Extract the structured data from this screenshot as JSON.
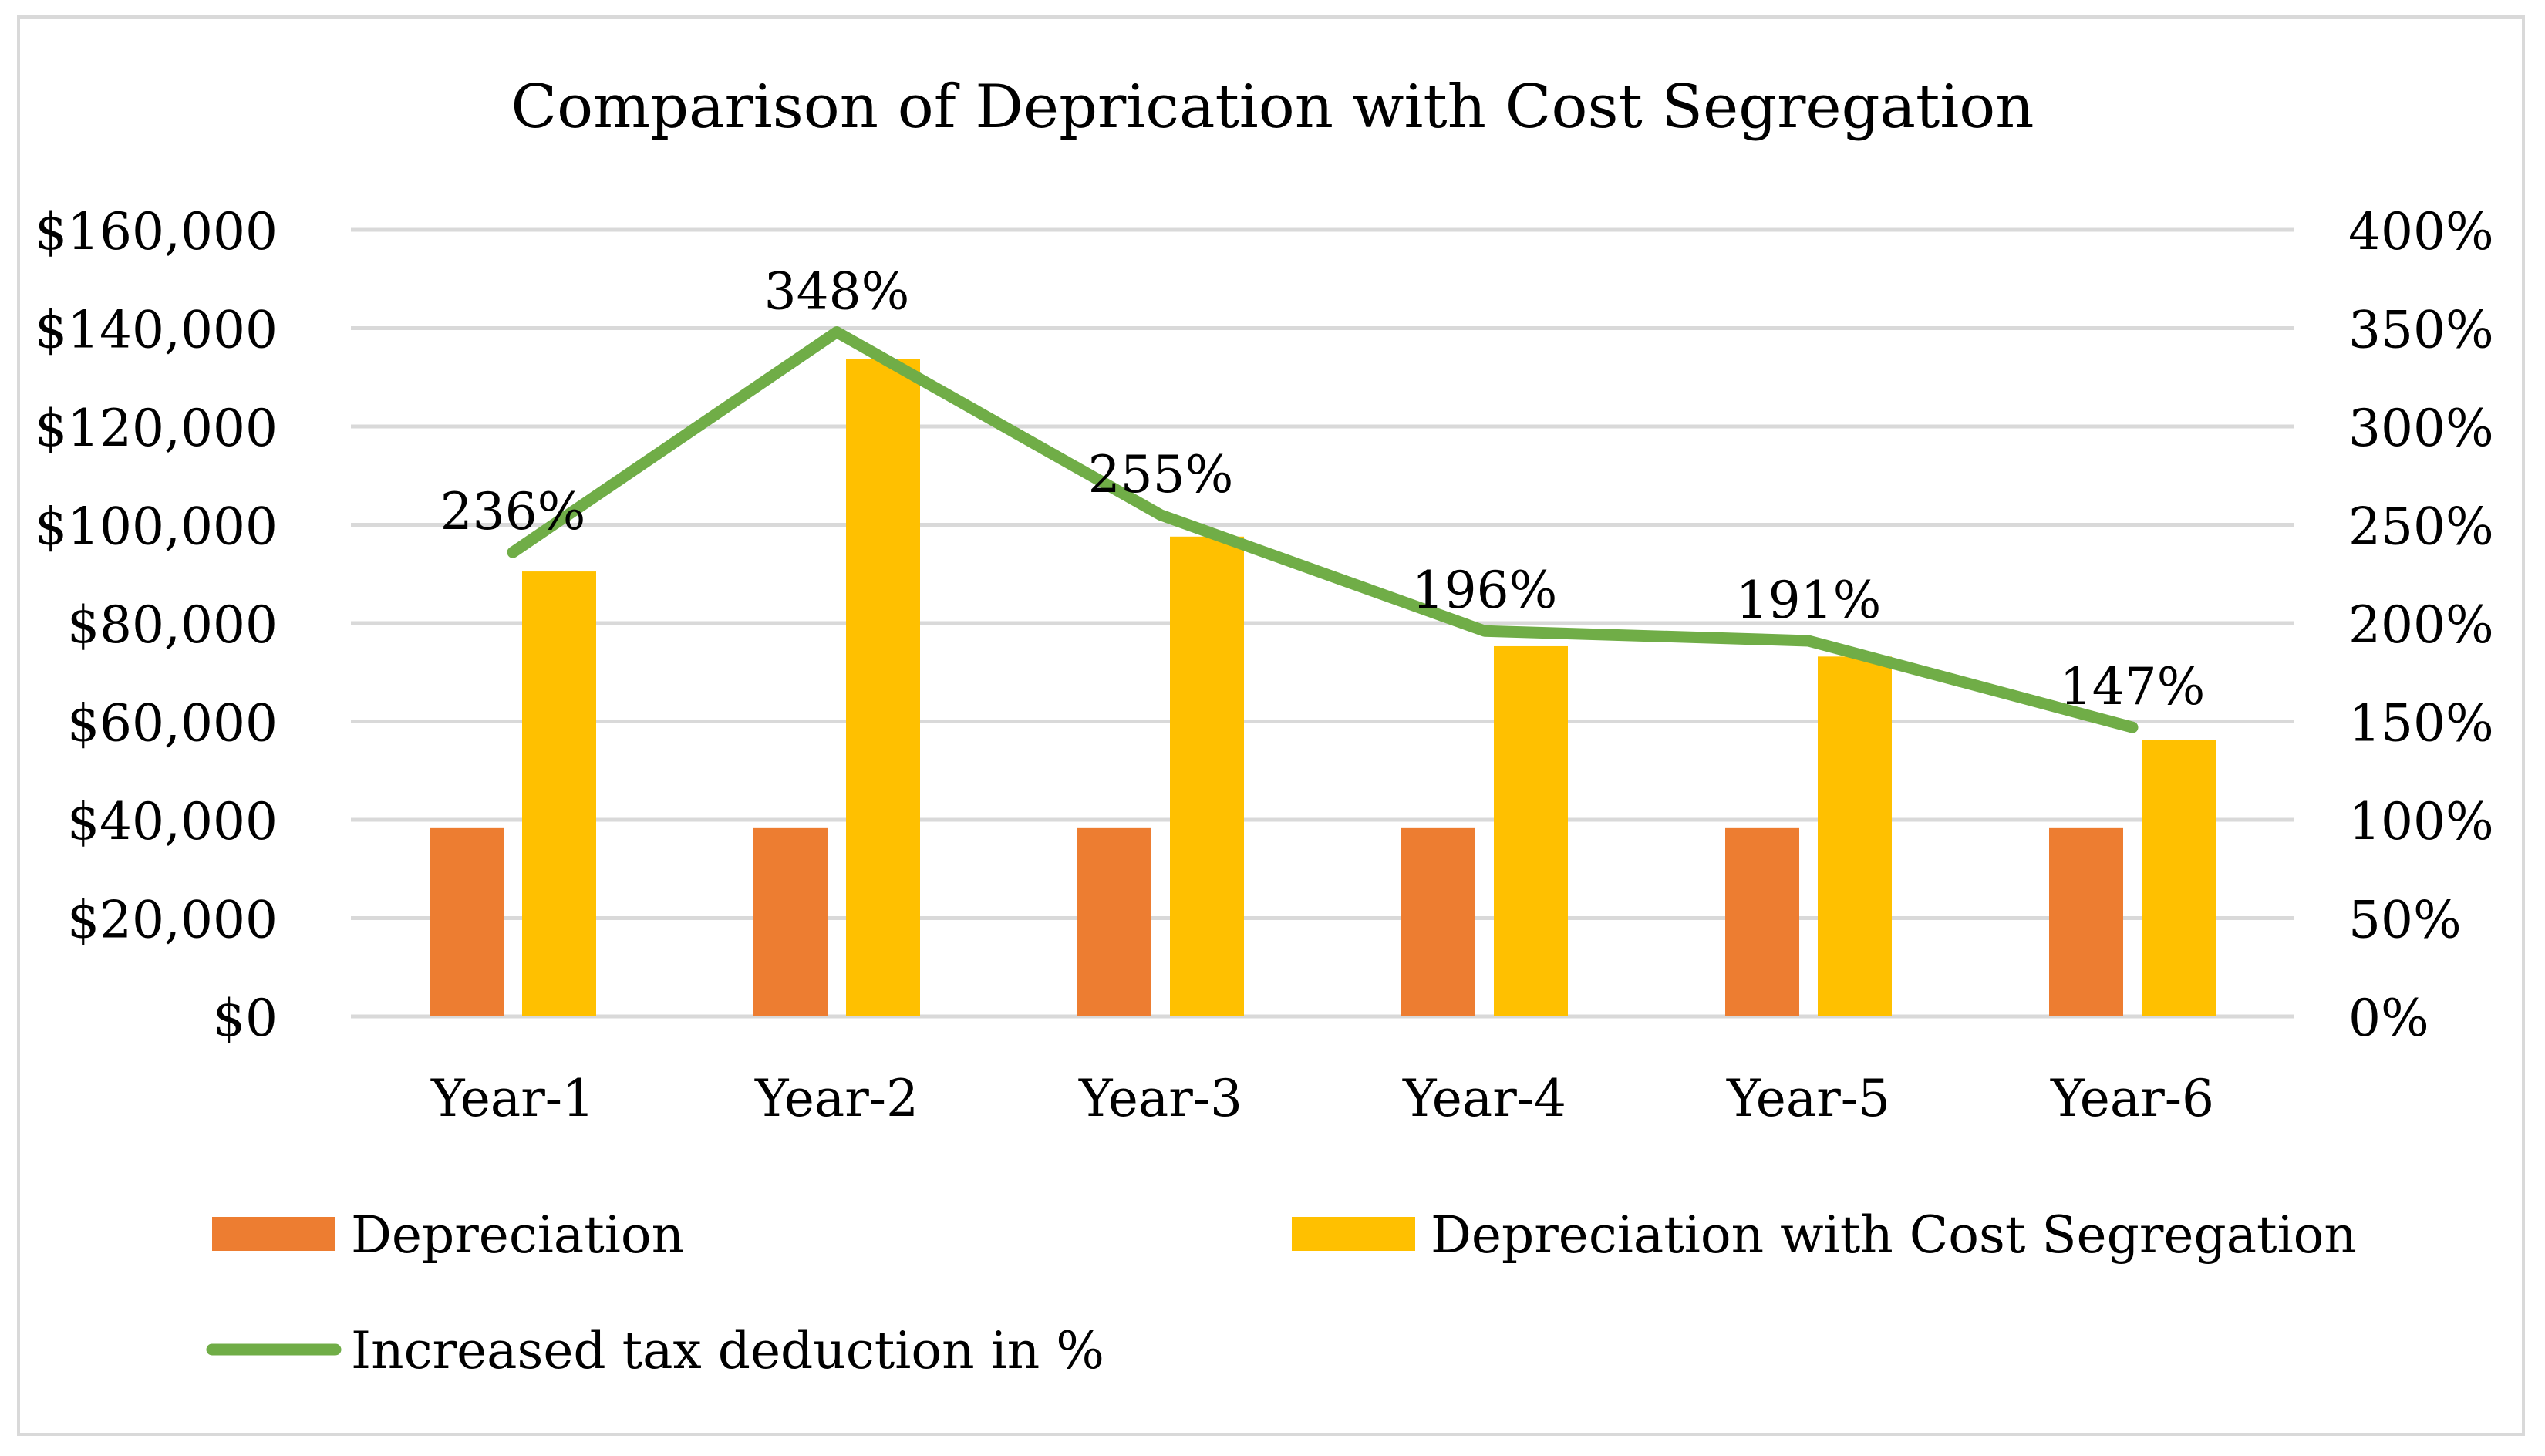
{
  "chart_data": {
    "type": "bar",
    "title": "Comparison of Deprication with Cost Segregation",
    "categories": [
      "Year-1",
      "Year-2",
      "Year-3",
      "Year-4",
      "Year-5",
      "Year-6"
    ],
    "series": [
      {
        "name": "Depreciation",
        "kind": "bar",
        "axis": "left",
        "color": "#ed7d31",
        "values": [
          38300,
          38300,
          38300,
          38300,
          38300,
          38300
        ]
      },
      {
        "name": "Depreciation with Cost Segregation",
        "kind": "bar",
        "axis": "left",
        "color": "#ffc000",
        "values": [
          90500,
          133800,
          97600,
          75300,
          73200,
          56300
        ]
      },
      {
        "name": "Increased tax deduction in %",
        "kind": "line",
        "axis": "right",
        "color": "#70ad47",
        "values": [
          236,
          348,
          255,
          196,
          191,
          147
        ],
        "labels": [
          "236%",
          "348%",
          "255%",
          "196%",
          "191%",
          "147%"
        ]
      }
    ],
    "y_left": {
      "min": 0,
      "max": 160000,
      "ticks": [
        "$0",
        "$20,000",
        "$40,000",
        "$60,000",
        "$80,000",
        "$100,000",
        "$120,000",
        "$140,000",
        "$160,000"
      ]
    },
    "y_right": {
      "min": 0,
      "max": 400,
      "ticks": [
        "0%",
        "50%",
        "100%",
        "150%",
        "200%",
        "250%",
        "300%",
        "350%",
        "400%"
      ]
    },
    "grid": true,
    "legend_position": "bottom",
    "gridline_color": "#d9d9d9"
  }
}
